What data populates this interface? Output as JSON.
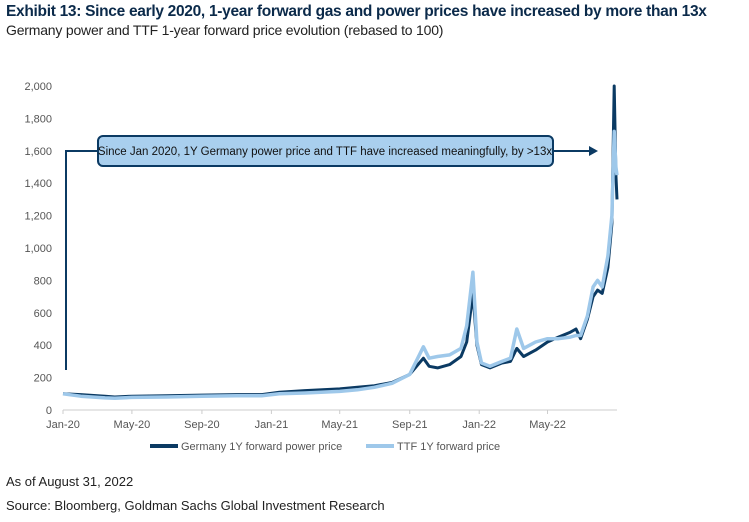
{
  "title": "Exhibit 13: Since early 2020, 1-year forward gas and power prices have increased by more than 13x",
  "subtitle": "Germany power and TTF 1-year forward price evolution (rebased to 100)",
  "as_of": "As of August 31, 2022",
  "source": "Source: Bloomberg, Goldman Sachs Global Investment Research",
  "chart_data": {
    "type": "line",
    "title": "",
    "xlabel": "",
    "ylabel": "",
    "ylim": [
      0,
      2000
    ],
    "xlim": [
      "2020-01-01",
      "2022-08-31"
    ],
    "yticks": [
      "0",
      "200",
      "400",
      "600",
      "800",
      "1,000",
      "1,200",
      "1,400",
      "1,600",
      "1,800",
      "2,000"
    ],
    "xticks": [
      {
        "date": "2020-01-01",
        "label": "Jan-20"
      },
      {
        "date": "2020-05-01",
        "label": "May-20"
      },
      {
        "date": "2020-09-01",
        "label": "Sep-20"
      },
      {
        "date": "2021-01-01",
        "label": "Jan-21"
      },
      {
        "date": "2021-05-01",
        "label": "May-21"
      },
      {
        "date": "2021-09-01",
        "label": "Sep-21"
      },
      {
        "date": "2022-01-01",
        "label": "Jan-22"
      },
      {
        "date": "2022-05-01",
        "label": "May-22"
      }
    ],
    "grid": false,
    "legend": "bottom",
    "annotation": "Since Jan 2020, 1Y Germany power price and TTF have increased meaningfully, by >13x",
    "series": [
      {
        "name": "Germany 1Y forward power price",
        "color": "#0b3a63",
        "x": [
          "2020-01-01",
          "2020-02-01",
          "2020-03-15",
          "2020-04-01",
          "2020-05-01",
          "2020-07-01",
          "2020-09-01",
          "2020-11-01",
          "2020-12-15",
          "2021-01-15",
          "2021-03-01",
          "2021-05-01",
          "2021-06-01",
          "2021-07-01",
          "2021-08-01",
          "2021-09-01",
          "2021-09-25",
          "2021-10-05",
          "2021-10-20",
          "2021-11-10",
          "2021-11-30",
          "2021-12-10",
          "2021-12-21",
          "2021-12-28",
          "2022-01-05",
          "2022-01-20",
          "2022-02-10",
          "2022-02-25",
          "2022-03-08",
          "2022-03-20",
          "2022-04-10",
          "2022-05-01",
          "2022-05-20",
          "2022-06-10",
          "2022-06-20",
          "2022-06-28",
          "2022-07-10",
          "2022-07-20",
          "2022-07-28",
          "2022-08-05",
          "2022-08-15",
          "2022-08-22",
          "2022-08-26",
          "2022-08-29",
          "2022-08-31"
        ],
        "y": [
          100,
          95,
          85,
          80,
          85,
          88,
          92,
          95,
          95,
          110,
          120,
          130,
          140,
          150,
          170,
          220,
          320,
          270,
          260,
          280,
          330,
          420,
          720,
          400,
          280,
          260,
          290,
          300,
          380,
          330,
          370,
          420,
          450,
          480,
          500,
          440,
          560,
          700,
          740,
          720,
          880,
          1150,
          2000,
          1450,
          1300
        ]
      },
      {
        "name": "TTF 1Y forward price",
        "color": "#9ec8ea",
        "x": [
          "2020-01-01",
          "2020-02-01",
          "2020-03-15",
          "2020-04-01",
          "2020-05-01",
          "2020-07-01",
          "2020-09-01",
          "2020-11-01",
          "2020-12-15",
          "2021-01-15",
          "2021-03-01",
          "2021-05-01",
          "2021-06-01",
          "2021-07-01",
          "2021-08-01",
          "2021-09-01",
          "2021-09-25",
          "2021-10-05",
          "2021-10-20",
          "2021-11-10",
          "2021-11-30",
          "2021-12-10",
          "2021-12-21",
          "2021-12-28",
          "2022-01-05",
          "2022-01-20",
          "2022-02-10",
          "2022-02-25",
          "2022-03-08",
          "2022-03-20",
          "2022-04-10",
          "2022-05-01",
          "2022-05-20",
          "2022-06-10",
          "2022-06-20",
          "2022-06-28",
          "2022-07-10",
          "2022-07-20",
          "2022-07-28",
          "2022-08-05",
          "2022-08-15",
          "2022-08-22",
          "2022-08-26",
          "2022-08-29",
          "2022-08-31"
        ],
        "y": [
          100,
          85,
          75,
          72,
          78,
          80,
          85,
          88,
          88,
          100,
          105,
          115,
          125,
          140,
          165,
          220,
          390,
          320,
          330,
          340,
          380,
          520,
          850,
          420,
          290,
          270,
          300,
          320,
          500,
          380,
          420,
          440,
          440,
          450,
          460,
          460,
          580,
          760,
          800,
          760,
          950,
          1200,
          1720,
          1500,
          1450
        ]
      }
    ]
  }
}
